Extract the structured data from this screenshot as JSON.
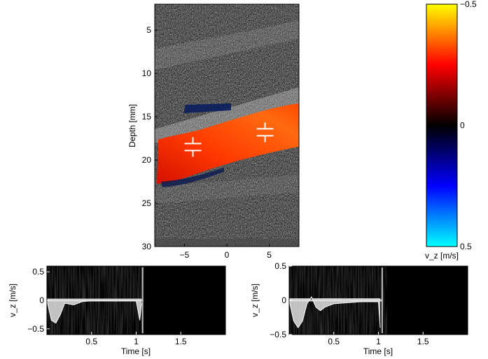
{
  "chart_data": [
    {
      "type": "heatmap",
      "subtype": "color-doppler-b-mode-image",
      "title": "",
      "xlabel": "",
      "ylabel": "Depth [mm]",
      "xlim": [
        -8.5,
        8.5
      ],
      "ylim": [
        30,
        2
      ],
      "xticks": [
        -5,
        0,
        5
      ],
      "yticks": [
        5,
        10,
        15,
        20,
        25,
        30
      ],
      "markers": [
        {
          "x": -4,
          "y": 18.5,
          "shape": "range-gate"
        },
        {
          "x": 4.5,
          "y": 16.8,
          "shape": "range-gate"
        }
      ]
    },
    {
      "type": "heatmap",
      "subtype": "colorbar",
      "colormap": [
        "#00ffff",
        "#0000ff",
        "#000000",
        "#ff0000",
        "#ffff00"
      ],
      "xlabel": "v_z [m/s]",
      "ylim": [
        0.5,
        -0.5
      ],
      "yticks": [
        -0.5,
        0,
        0.5
      ],
      "yticklabels": [
        "−0.5",
        "0",
        "0.5"
      ]
    },
    {
      "type": "heatmap",
      "subtype": "doppler-spectrogram",
      "xlabel": "Time [s]",
      "ylabel": "v_z [m/s]",
      "xlim": [
        0,
        2
      ],
      "ylim": [
        0.6,
        -0.6
      ],
      "xticks": [
        0.5,
        1,
        1.5
      ],
      "yticks": [
        -0.5,
        0,
        0.5
      ],
      "xticklabels": [
        "0.5",
        "1",
        "1.5"
      ],
      "yticklabels": [
        "−0.5",
        "0",
        "0.5"
      ],
      "signal_end_time": 1.08,
      "trace": {
        "t": [
          0,
          0.05,
          0.1,
          0.15,
          0.2,
          0.3,
          0.4,
          0.5,
          0.6,
          0.7,
          0.8,
          0.9,
          1.0,
          1.04,
          1.06
        ],
        "v": [
          0,
          -0.35,
          -0.4,
          -0.25,
          -0.05,
          -0.08,
          -0.02,
          -0.01,
          -0.01,
          -0.01,
          -0.01,
          -0.01,
          -0.01,
          -0.35,
          -0.05
        ]
      }
    },
    {
      "type": "heatmap",
      "subtype": "doppler-spectrogram",
      "xlabel": "Time [s]",
      "ylabel": "v_z [m/s]",
      "xlim": [
        0,
        2
      ],
      "ylim": [
        0.5,
        -0.5
      ],
      "xticks": [
        0.5,
        1,
        1.5
      ],
      "yticks": [
        -0.5,
        0,
        0.5
      ],
      "xticklabels": [
        "0.5",
        "1",
        "1.5"
      ],
      "yticklabels": [
        "−0.5",
        "0",
        "0.5"
      ],
      "signal_end_time": 1.05,
      "trace": {
        "t": [
          0,
          0.05,
          0.1,
          0.15,
          0.2,
          0.25,
          0.3,
          0.35,
          0.4,
          0.5,
          0.6,
          0.7,
          0.8,
          0.9,
          1.0,
          1.02
        ],
        "v": [
          0,
          -0.3,
          -0.4,
          -0.3,
          -0.05,
          0.05,
          -0.1,
          -0.15,
          -0.1,
          -0.05,
          -0.04,
          -0.03,
          -0.02,
          -0.02,
          -0.02,
          -0.4
        ]
      }
    }
  ]
}
